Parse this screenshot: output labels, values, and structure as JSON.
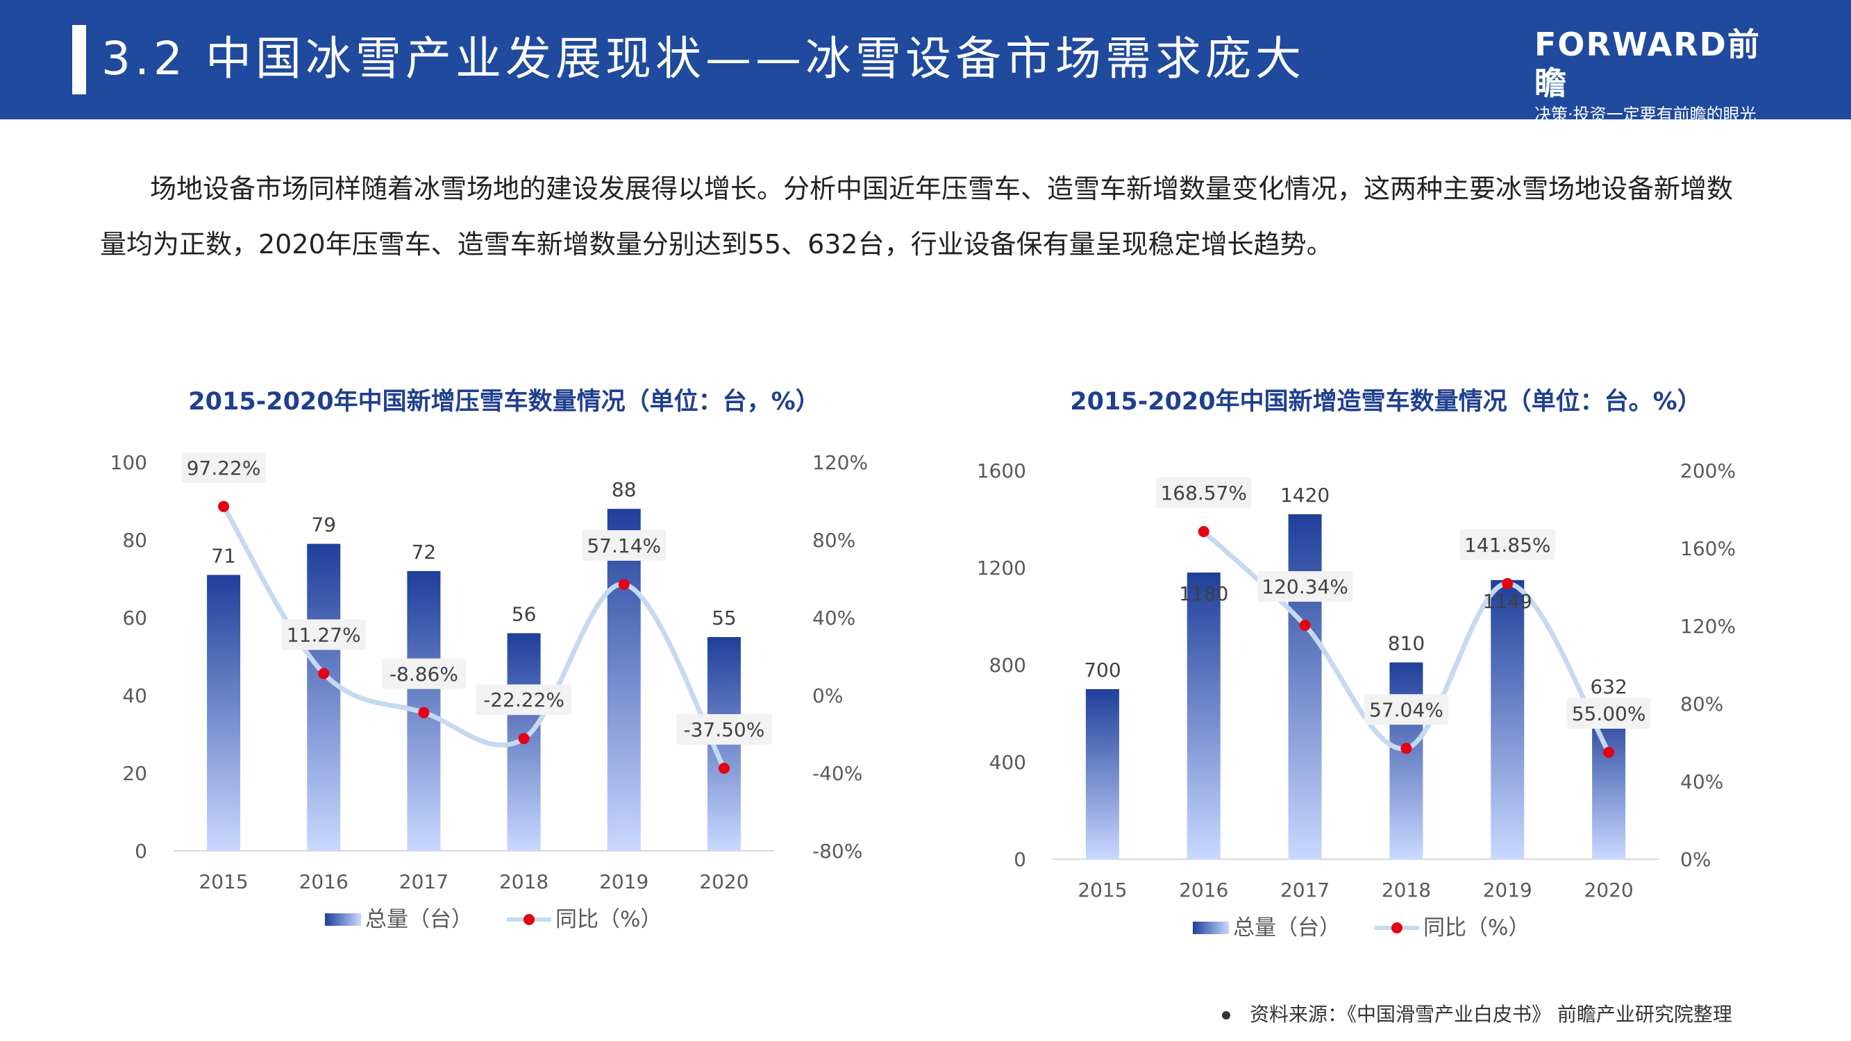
{
  "header": {
    "title": "3.2 中国冰雪产业发展现状——冰雪设备市场需求庞大",
    "logo": "FORWARD前瞻",
    "slogan": "决策·投资一定要有前瞻的眼光"
  },
  "intro": "场地设备市场同样随着冰雪场地的建设发展得以增长。分析中国近年压雪车、造雪车新增数量变化情况，这两种主要冰雪场地设备新增数量均为正数，2020年压雪车、造雪车新增数量分别达到55、632台，行业设备保有量呈现稳定增长趋势。",
  "source": "资料来源：《中国滑雪产业白皮书》 前瞻产业研究院整理",
  "colors": {
    "header": "#1f4a9d",
    "bar_top": "#1f3f9a",
    "bar_bottom": "#c9d8ff",
    "line": "#c5d9f1",
    "point": "#e60012"
  },
  "chart_data": [
    {
      "type": "bar",
      "title": "2015-2020年中国新增压雪车数量情况（单位：台，%）",
      "categories": [
        "2015",
        "2016",
        "2017",
        "2018",
        "2019",
        "2020"
      ],
      "series": [
        {
          "name": "总量（台）",
          "type": "bar",
          "axis": "left",
          "values": [
            71,
            79,
            72,
            56,
            88,
            55
          ],
          "labels": [
            "71",
            "79",
            "72",
            "56",
            "88",
            "55"
          ]
        },
        {
          "name": "同比（%）",
          "type": "line",
          "axis": "right",
          "values": [
            97.22,
            11.27,
            -8.86,
            -22.22,
            57.14,
            -37.5
          ],
          "labels": [
            "97.22%",
            "11.27%",
            "-8.86%",
            "-22.22%",
            "57.14%",
            "-37.50%"
          ]
        }
      ],
      "ylim": [
        0,
        100
      ],
      "yticks": [
        "0",
        "20",
        "40",
        "60",
        "80",
        "100"
      ],
      "y2lim": [
        -80,
        120
      ],
      "y2ticks": [
        "-80%",
        "-40%",
        "0%",
        "40%",
        "80%",
        "120%"
      ],
      "legend": "bottom"
    },
    {
      "type": "bar",
      "title": "2015-2020年中国新增造雪车数量情况（单位：台。%）",
      "categories": [
        "2015",
        "2016",
        "2017",
        "2018",
        "2019",
        "2020"
      ],
      "series": [
        {
          "name": "总量（台）",
          "type": "bar",
          "axis": "left",
          "values": [
            700,
            1180,
            1420,
            810,
            1149,
            632
          ],
          "labels": [
            "700",
            "1180",
            "1420",
            "810",
            "1149",
            "632"
          ]
        },
        {
          "name": "同比（%）",
          "type": "line",
          "axis": "right",
          "values": [
            null,
            168.57,
            120.34,
            57.04,
            141.85,
            55.0
          ],
          "labels": [
            "",
            "168.57%",
            "120.34%",
            "57.04%",
            "141.85%",
            "55.00%"
          ]
        }
      ],
      "ylim": [
        0,
        1600
      ],
      "yticks": [
        "0",
        "400",
        "800",
        "1200",
        "1600"
      ],
      "y2lim": [
        0,
        200
      ],
      "y2ticks": [
        "0%",
        "40%",
        "80%",
        "120%",
        "160%",
        "200%"
      ],
      "legend": "bottom"
    }
  ]
}
